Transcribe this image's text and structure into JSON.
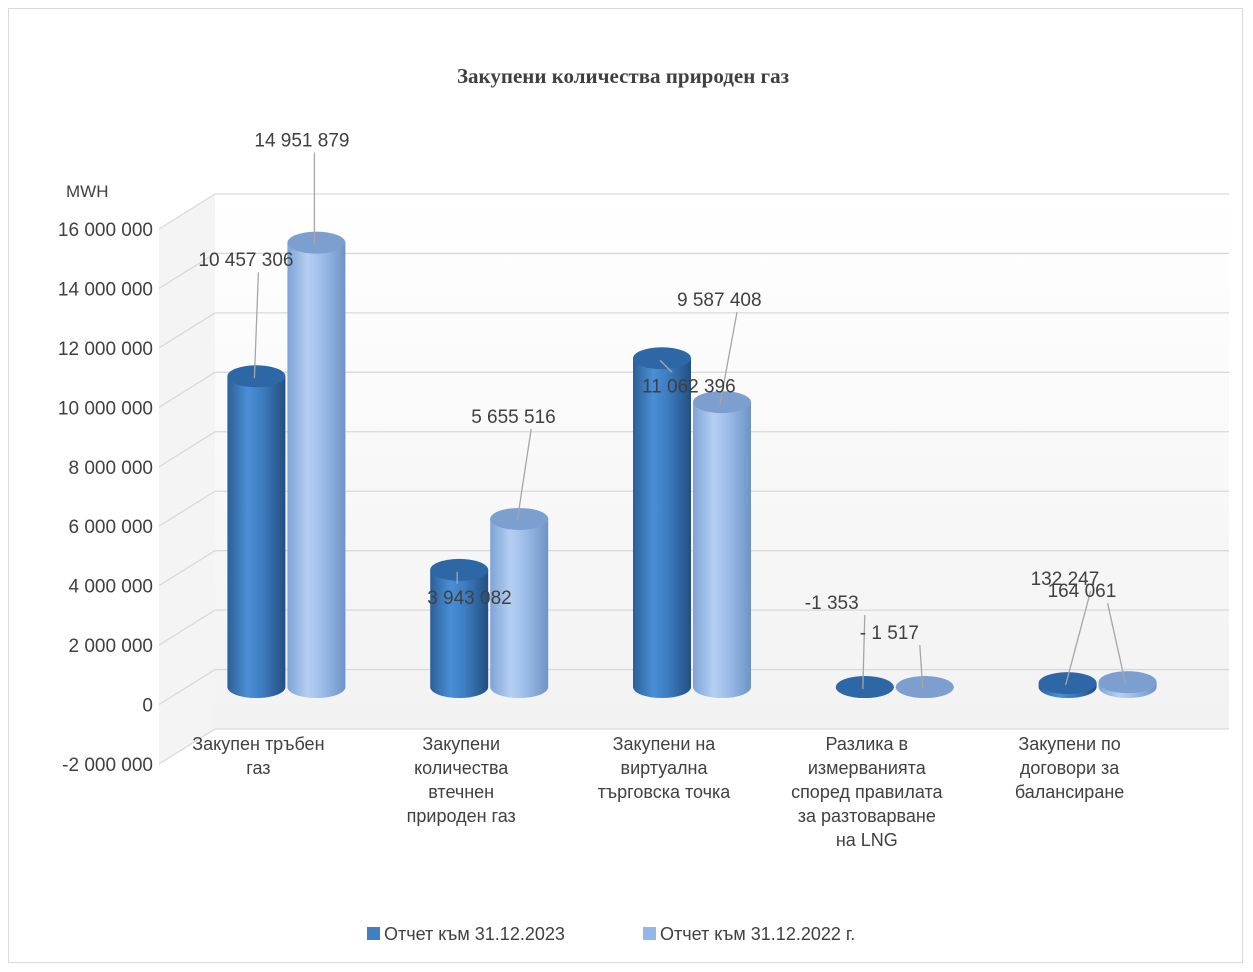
{
  "chart_data": {
    "type": "bar",
    "title": "Закупени количества природен газ",
    "ylabel": "MWH",
    "ylim": [
      -2000000,
      16000000
    ],
    "y_ticks": [
      -2000000,
      0,
      2000000,
      4000000,
      6000000,
      8000000,
      10000000,
      12000000,
      14000000,
      16000000
    ],
    "y_tick_labels": [
      "-2 000 000",
      "0",
      "2 000 000",
      "4 000 000",
      "6 000 000",
      "8 000 000",
      "10 000 000",
      "12 000 000",
      "14 000 000",
      "16 000 000"
    ],
    "categories": [
      [
        "Закупен тръбен",
        "газ"
      ],
      [
        "Закупени",
        "количества",
        "втечнен",
        "природен газ"
      ],
      [
        "Закупени на",
        "виртуална",
        "търговска точка"
      ],
      [
        "Разлика в",
        "измерванията",
        "според правилата",
        "за разтоварване",
        "на LNG"
      ],
      [
        "Закупени по",
        "договори за",
        "балансиране"
      ]
    ],
    "series": [
      {
        "name": "Отчет към 31.12.2023",
        "color": "#3f7fc4",
        "values": [
          10457306,
          3943082,
          11062396,
          -1353,
          132247
        ],
        "labels": [
          "10 457 306",
          "3 943 082",
          "11 062 396",
          "-1 353",
          "132 247"
        ]
      },
      {
        "name": "Отчет към  31.12.2022 г.",
        "color": "#93b8e8",
        "values": [
          14951879,
          5655516,
          9587408,
          -1517,
          164061
        ],
        "labels": [
          "14 951 879",
          "5 655 516",
          "9 587 408",
          "- 1 517",
          "164 061"
        ]
      }
    ],
    "grid": true,
    "legend_position": "bottom",
    "style": "3d-cylinder"
  }
}
